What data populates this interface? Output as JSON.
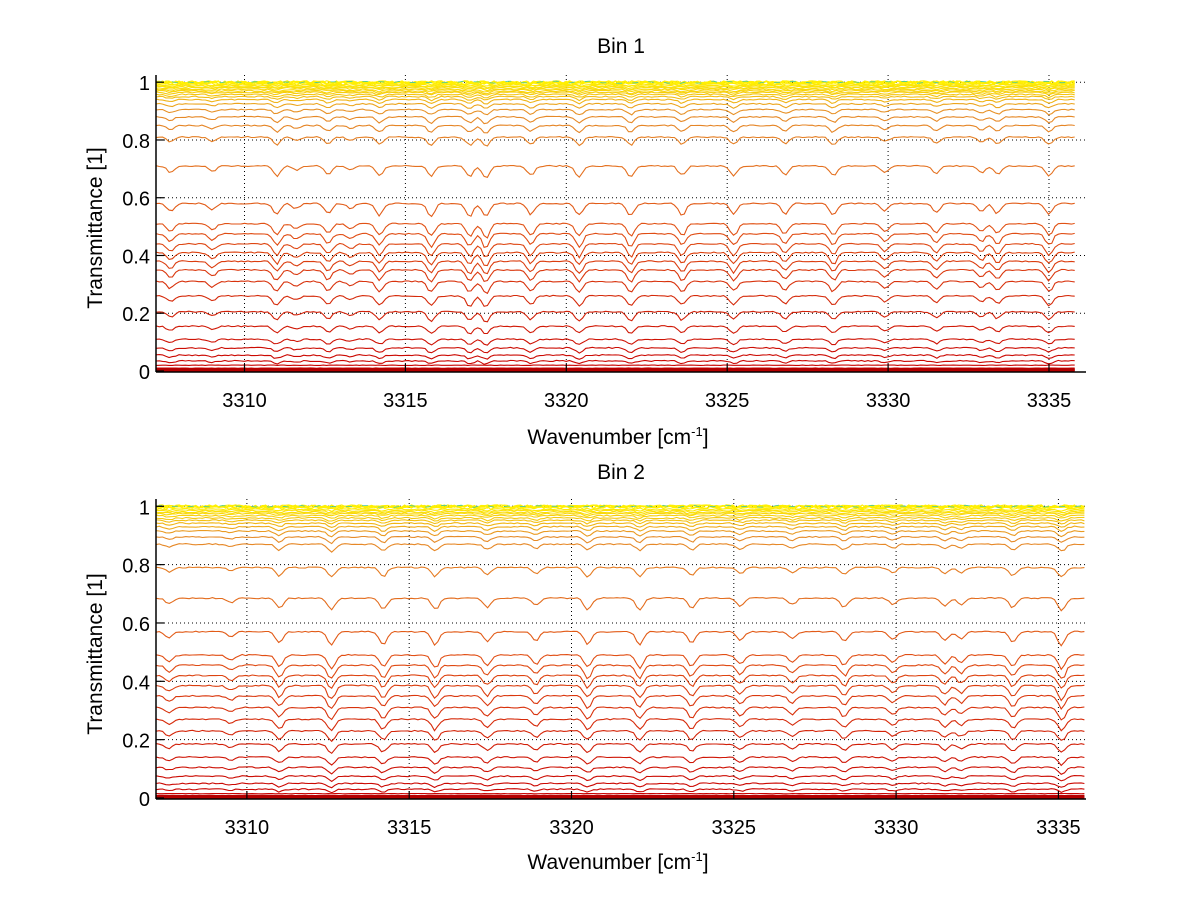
{
  "chart_data": [
    {
      "type": "line",
      "title": "Bin 1",
      "xlabel": "Wavenumber [cm",
      "xlabel_superscript": "-1",
      "xlabel_suffix": "]",
      "ylabel": "Transmittance [1]",
      "xlim": [
        3307.25,
        3336.15
      ],
      "ylim": [
        0,
        1.025
      ],
      "x_data_range": [
        3307.25,
        3335.8
      ],
      "xticks": [
        3310,
        3315,
        3320,
        3325,
        3330,
        3335
      ],
      "xtick_labels": [
        "3310",
        "3315",
        "3320",
        "3325",
        "3330",
        "3335"
      ],
      "yticks": [
        0,
        0.2,
        0.4,
        0.6,
        0.8,
        1
      ],
      "ytick_labels": [
        "0",
        "0.2",
        "0.4",
        "0.6",
        "0.8",
        "1"
      ],
      "grid": true,
      "grid_style": "dotted",
      "colormap": "autumn (red to yellow by transmittance level)",
      "absorption_lines": [
        {
          "center": 3307.7,
          "strength": 0.6
        },
        {
          "center": 3309.0,
          "strength": 0.5
        },
        {
          "center": 3311.0,
          "strength": 0.9
        },
        {
          "center": 3311.6,
          "strength": 0.4
        },
        {
          "center": 3312.6,
          "strength": 0.8
        },
        {
          "center": 3313.3,
          "strength": 0.4
        },
        {
          "center": 3314.2,
          "strength": 0.9
        },
        {
          "center": 3315.8,
          "strength": 1.0
        },
        {
          "center": 3317.0,
          "strength": 1.0
        },
        {
          "center": 3317.5,
          "strength": 1.1
        },
        {
          "center": 3318.9,
          "strength": 0.9
        },
        {
          "center": 3320.4,
          "strength": 1.0
        },
        {
          "center": 3322.0,
          "strength": 1.0
        },
        {
          "center": 3323.6,
          "strength": 0.9
        },
        {
          "center": 3325.2,
          "strength": 0.9
        },
        {
          "center": 3326.8,
          "strength": 0.8
        },
        {
          "center": 3328.3,
          "strength": 0.9
        },
        {
          "center": 3329.9,
          "strength": 0.6
        },
        {
          "center": 3331.5,
          "strength": 0.7
        },
        {
          "center": 3332.9,
          "strength": 0.6
        },
        {
          "center": 3333.4,
          "strength": 0.8
        },
        {
          "center": 3335.0,
          "strength": 0.9
        }
      ],
      "series_levels": [
        1.0,
        1.0,
        1.0,
        0.998,
        0.995,
        0.992,
        0.988,
        0.984,
        0.98,
        0.975,
        0.97,
        0.965,
        0.958,
        0.95,
        0.94,
        0.925,
        0.905,
        0.88,
        0.85,
        0.81,
        0.71,
        0.58,
        0.51,
        0.475,
        0.44,
        0.41,
        0.38,
        0.35,
        0.31,
        0.26,
        0.205,
        0.155,
        0.11,
        0.08,
        0.055,
        0.035,
        0.02,
        0.01,
        0.004,
        0.0
      ]
    },
    {
      "type": "line",
      "title": "Bin 2",
      "xlabel": "Wavenumber [cm",
      "xlabel_superscript": "-1",
      "xlabel_suffix": "]",
      "ylabel": "Transmittance [1]",
      "xlim": [
        3307.2,
        3335.85
      ],
      "ylim": [
        0,
        1.025
      ],
      "x_data_range": [
        3307.2,
        3335.8
      ],
      "xticks": [
        3310,
        3315,
        3320,
        3325,
        3330,
        3335
      ],
      "xtick_labels": [
        "3310",
        "3315",
        "3320",
        "3325",
        "3330",
        "3335"
      ],
      "yticks": [
        0,
        0.2,
        0.4,
        0.6,
        0.8,
        1
      ],
      "ytick_labels": [
        "0",
        "0.2",
        "0.4",
        "0.6",
        "0.8",
        "1"
      ],
      "grid": true,
      "grid_style": "dotted",
      "colormap": "autumn (red to yellow by transmittance level)",
      "absorption_lines": [
        {
          "center": 3307.6,
          "strength": 0.5
        },
        {
          "center": 3309.5,
          "strength": 0.4
        },
        {
          "center": 3311.0,
          "strength": 0.9
        },
        {
          "center": 3312.6,
          "strength": 1.1
        },
        {
          "center": 3314.2,
          "strength": 1.0
        },
        {
          "center": 3315.8,
          "strength": 1.0
        },
        {
          "center": 3317.4,
          "strength": 0.8
        },
        {
          "center": 3318.9,
          "strength": 0.7
        },
        {
          "center": 3320.5,
          "strength": 1.0
        },
        {
          "center": 3322.1,
          "strength": 1.0
        },
        {
          "center": 3323.7,
          "strength": 0.9
        },
        {
          "center": 3325.2,
          "strength": 0.7
        },
        {
          "center": 3326.8,
          "strength": 0.6
        },
        {
          "center": 3328.4,
          "strength": 0.8
        },
        {
          "center": 3329.9,
          "strength": 0.6
        },
        {
          "center": 3331.5,
          "strength": 0.7
        },
        {
          "center": 3332.0,
          "strength": 0.6
        },
        {
          "center": 3333.6,
          "strength": 0.9
        },
        {
          "center": 3335.1,
          "strength": 1.1
        }
      ],
      "series_levels": [
        1.0,
        1.0,
        1.0,
        0.998,
        0.995,
        0.99,
        0.985,
        0.98,
        0.975,
        0.968,
        0.96,
        0.952,
        0.942,
        0.93,
        0.915,
        0.895,
        0.87,
        0.79,
        0.685,
        0.57,
        0.49,
        0.455,
        0.42,
        0.385,
        0.35,
        0.31,
        0.27,
        0.23,
        0.185,
        0.14,
        0.105,
        0.075,
        0.05,
        0.03,
        0.015,
        0.007,
        0.002,
        0.0
      ]
    }
  ]
}
